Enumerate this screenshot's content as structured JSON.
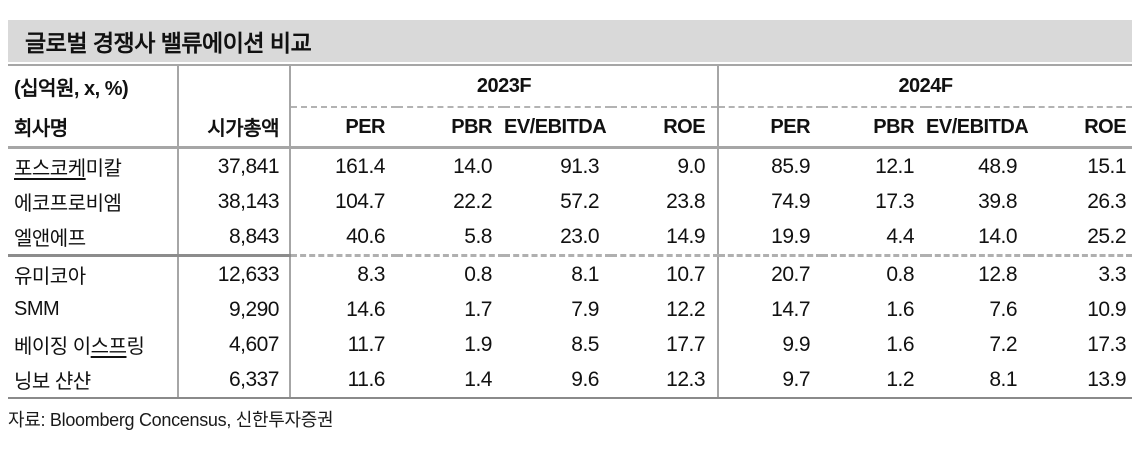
{
  "title": "글로벌 경쟁사 밸류에이션 비교",
  "table": {
    "unit_label": "(십억원, x, %)",
    "col_company": "회사명",
    "col_mktcap": "시가총액",
    "year_groups": [
      "2023F",
      "2024F"
    ],
    "metric_headers": [
      "PER",
      "PBR",
      "EV/EBITDA",
      "ROE"
    ],
    "row_groups": [
      {
        "rows": [
          {
            "name_pre": "",
            "name_underline": "포스코케",
            "name_post": "미칼",
            "mktcap": "37,841",
            "y2023": [
              "161.4",
              "14.0",
              "91.3",
              "9.0"
            ],
            "y2024": [
              "85.9",
              "12.1",
              "48.9",
              "15.1"
            ]
          },
          {
            "name_pre": "에코프로비엠",
            "name_underline": "",
            "name_post": "",
            "mktcap": "38,143",
            "y2023": [
              "104.7",
              "22.2",
              "57.2",
              "23.8"
            ],
            "y2024": [
              "74.9",
              "17.3",
              "39.8",
              "26.3"
            ]
          },
          {
            "name_pre": "엘앤에프",
            "name_underline": "",
            "name_post": "",
            "mktcap": "8,843",
            "y2023": [
              "40.6",
              "5.8",
              "23.0",
              "14.9"
            ],
            "y2024": [
              "19.9",
              "4.4",
              "14.0",
              "25.2"
            ]
          }
        ]
      },
      {
        "rows": [
          {
            "name_pre": "유미코아",
            "name_underline": "",
            "name_post": "",
            "mktcap": "12,633",
            "y2023": [
              "8.3",
              "0.8",
              "8.1",
              "10.7"
            ],
            "y2024": [
              "20.7",
              "0.8",
              "12.8",
              "3.3"
            ]
          },
          {
            "name_pre": "SMM",
            "name_underline": "",
            "name_post": "",
            "mktcap": "9,290",
            "y2023": [
              "14.6",
              "1.7",
              "7.9",
              "12.2"
            ],
            "y2024": [
              "14.7",
              "1.6",
              "7.6",
              "10.9"
            ]
          },
          {
            "name_pre": "베이징 이",
            "name_underline": "스프",
            "name_post": "링",
            "mktcap": "4,607",
            "y2023": [
              "11.7",
              "1.9",
              "8.5",
              "17.7"
            ],
            "y2024": [
              "9.9",
              "1.6",
              "7.2",
              "17.3"
            ]
          },
          {
            "name_pre": "닝보 샨샨",
            "name_underline": "",
            "name_post": "",
            "mktcap": "6,337",
            "y2023": [
              "11.6",
              "1.4",
              "9.6",
              "12.3"
            ],
            "y2024": [
              "9.7",
              "1.2",
              "8.1",
              "13.9"
            ]
          }
        ]
      }
    ]
  },
  "source": "자료: Bloomberg Concensus, 신한투자증권",
  "colors": {
    "title_band_bg": "#d9d9d9",
    "line_gray": "#a6a6a6",
    "group_separator_solid": "#8c8c8c",
    "dashed_gray": "#b3b3b3",
    "text": "#111111"
  }
}
